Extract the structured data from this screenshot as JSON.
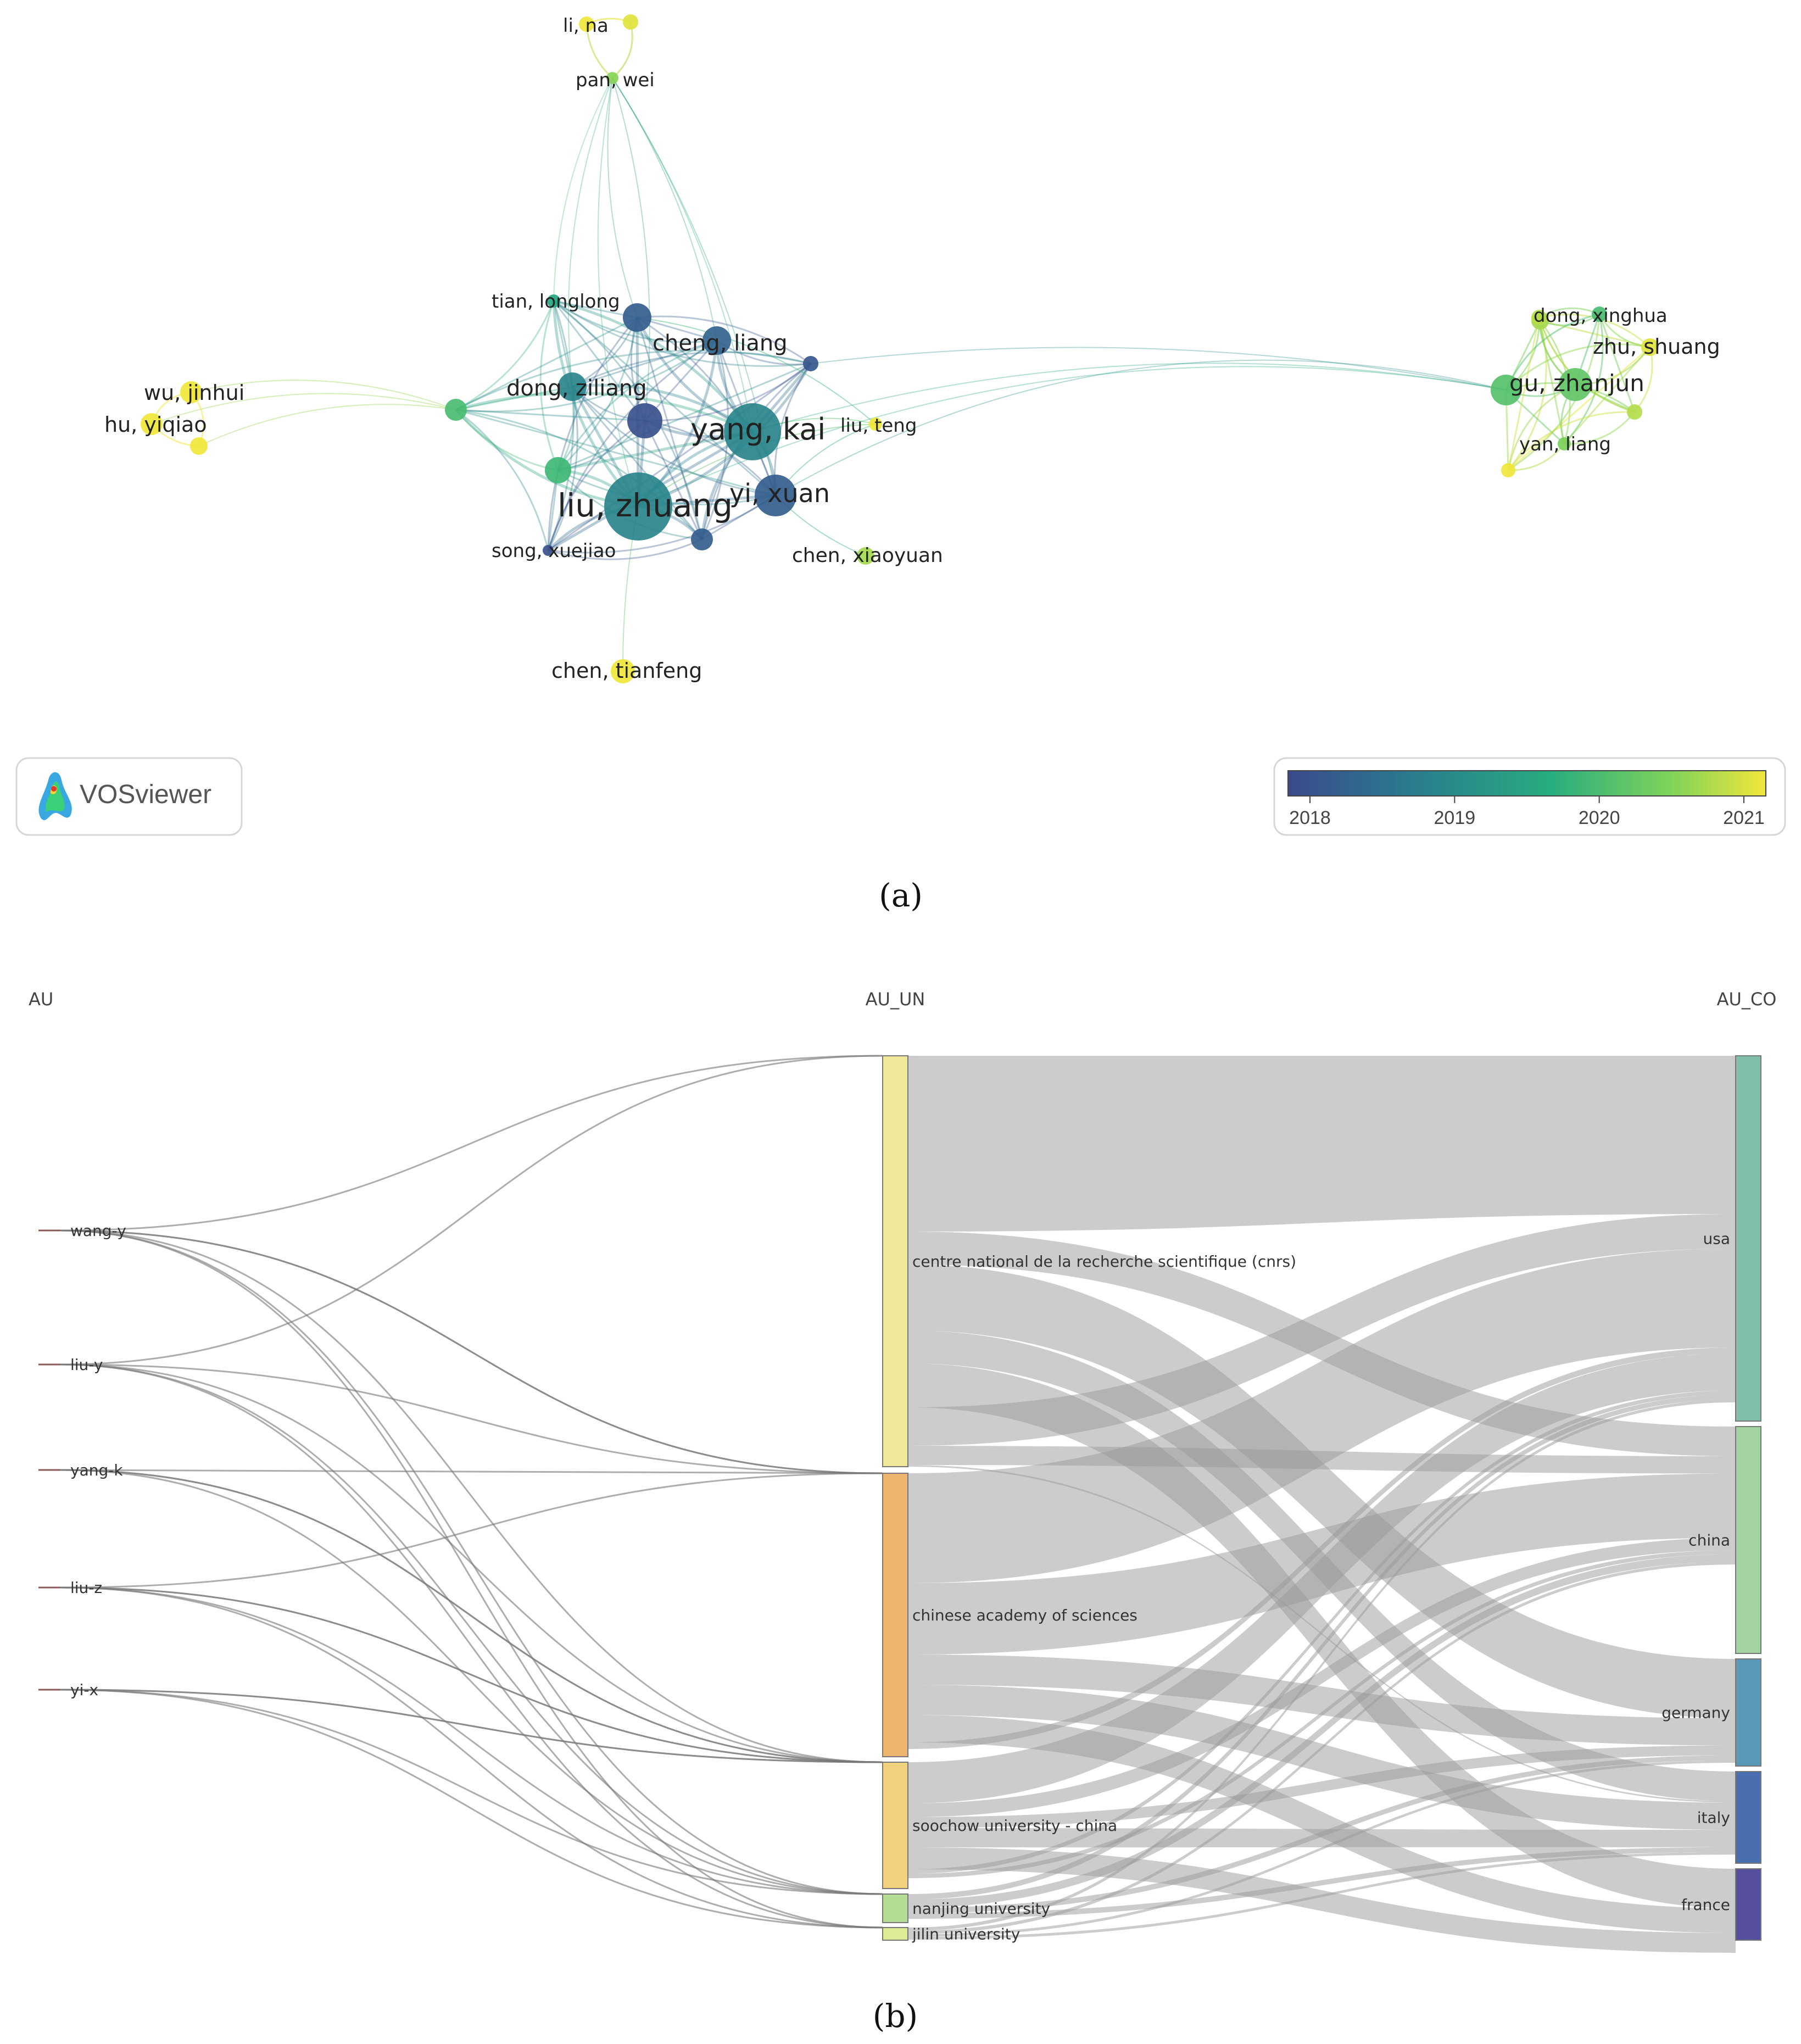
{
  "panel_a": {
    "caption": "(a)",
    "logo_text": "VOSviewer",
    "colorbar": {
      "ticks": [
        "2018",
        "2019",
        "2020",
        "2021"
      ],
      "colors": [
        "#3b4a8c",
        "#2a7a8e",
        "#27ad7f",
        "#7fd35a",
        "#f0e63a"
      ]
    },
    "nodes": [
      {
        "label": "li, na",
        "year": 2021
      },
      {
        "label": "pan, wei",
        "year": 2020.3
      },
      {
        "label": "tian, longlong",
        "year": 2019.4
      },
      {
        "label": "cheng, liang",
        "year": 2018.4
      },
      {
        "label": "dong, ziliang",
        "year": 2018.9
      },
      {
        "label": "yang, kai",
        "year": 2018.9
      },
      {
        "label": "liu, teng",
        "year": 2021
      },
      {
        "label": "liu, zhuang",
        "year": 2018.9
      },
      {
        "label": "yi, xuan",
        "year": 2018.3
      },
      {
        "label": "song, xuejiao",
        "year": 2018.1
      },
      {
        "label": "chen, xiaoyuan",
        "year": 2020.5
      },
      {
        "label": "chen, tianfeng",
        "year": 2021
      },
      {
        "label": "wu, jinhui",
        "year": 2021
      },
      {
        "label": "hu, yiqiao",
        "year": 2021
      },
      {
        "label": "dong, xinghua",
        "year": 2020.5
      },
      {
        "label": "zhu, shuang",
        "year": 2020.9
      },
      {
        "label": "gu, zhanjun",
        "year": 2020
      },
      {
        "label": "yan, liang",
        "year": 2020.2
      }
    ]
  },
  "panel_b": {
    "caption": "(b)",
    "column_headers": [
      "AU",
      "AU_UN",
      "AU_CO"
    ],
    "authors": [
      "wang-y",
      "liu-y",
      "yang-k",
      "liu-z",
      "yi-x"
    ],
    "institutions": [
      "centre national de la recherche scientifique (cnrs)",
      "chinese academy of sciences",
      "soochow university - china",
      "nanjing university",
      "jilin university"
    ],
    "countries": [
      "usa",
      "china",
      "germany",
      "italy",
      "france"
    ],
    "colors": {
      "inst": [
        "#efe79a",
        "#efb56e",
        "#f2d27e",
        "#b5dc94",
        "#dcec94"
      ],
      "country": [
        "#7fbfa9",
        "#a3d39f",
        "#5b98b5",
        "#4a6fb0",
        "#554f9e"
      ]
    }
  }
}
